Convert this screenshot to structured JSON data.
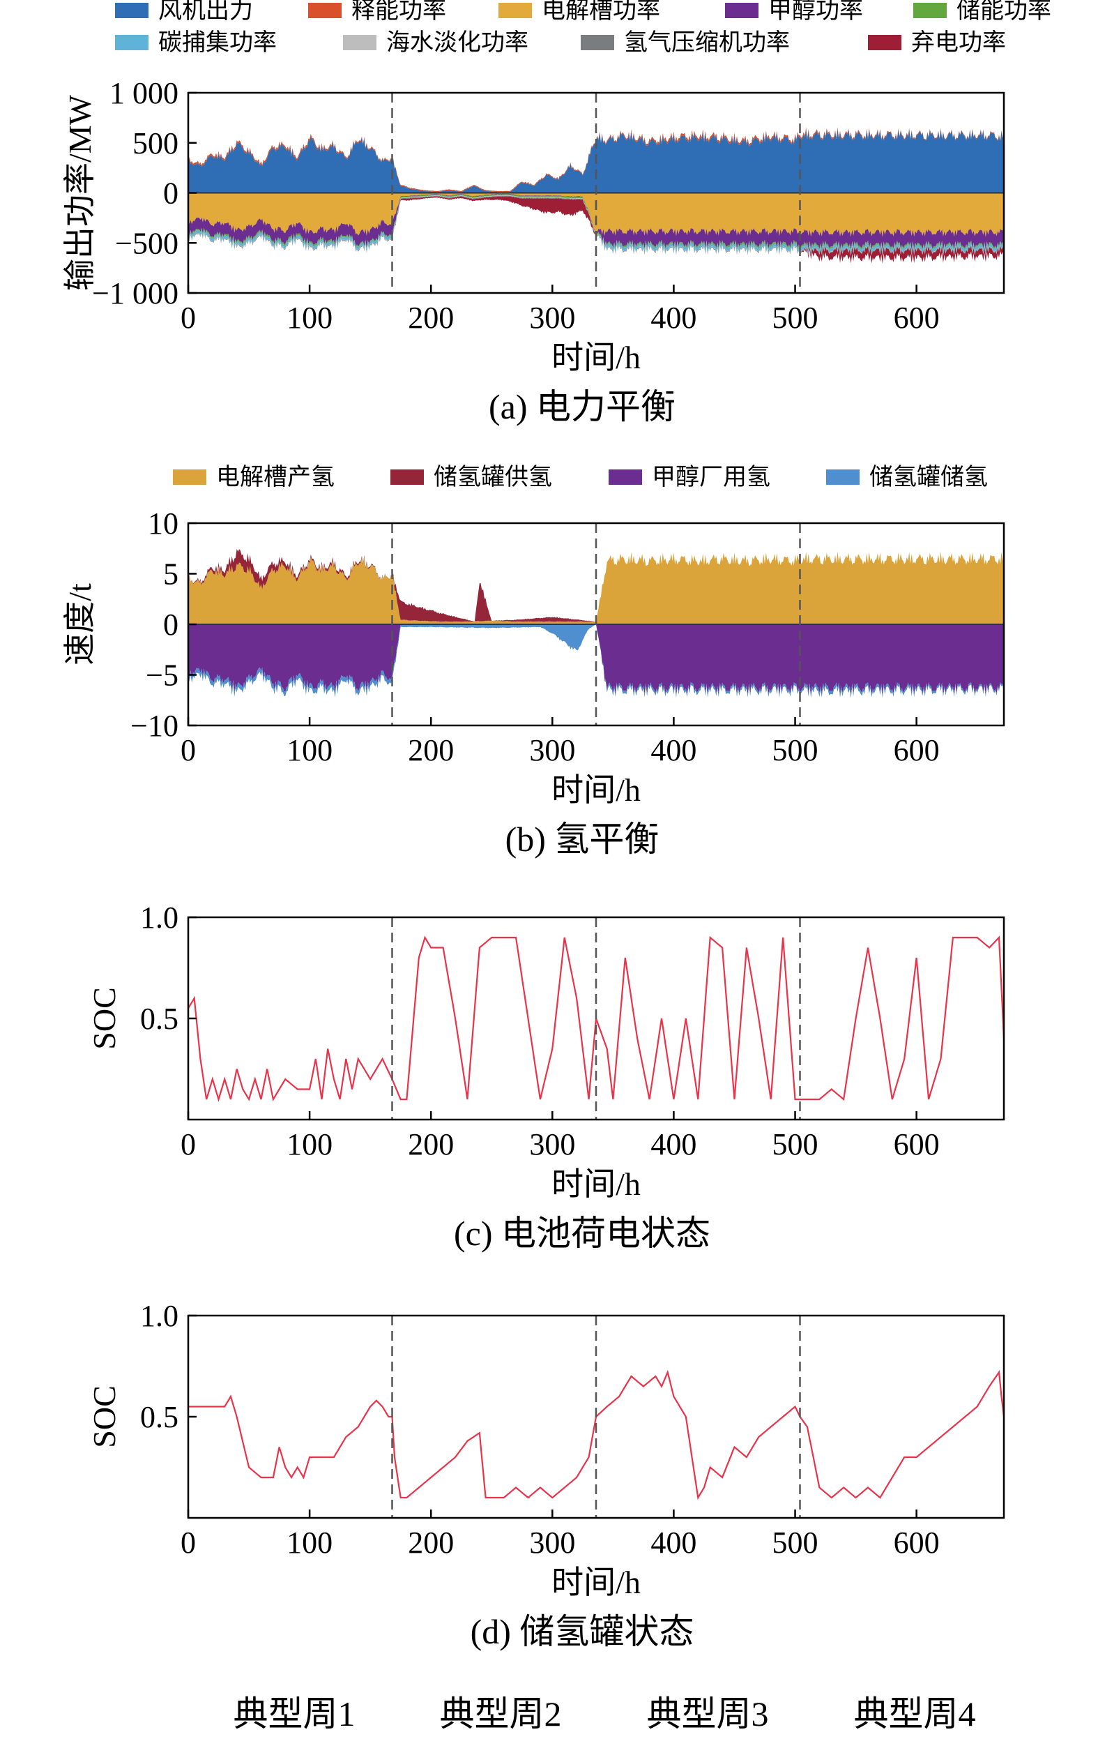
{
  "chart_data": [
    {
      "id": "a",
      "type": "area",
      "title": "",
      "caption": "(a) 电力平衡",
      "xlabel": "时间/h",
      "ylabel": "输出功率/MW",
      "xlim": [
        0,
        672
      ],
      "ylim": [
        -1000,
        1000
      ],
      "xticks": [
        0,
        100,
        200,
        300,
        400,
        500,
        600
      ],
      "yticks": [
        -1000,
        -500,
        0,
        500,
        1000
      ],
      "ytick_labels": [
        "−1 000",
        "−500",
        "0",
        "500",
        "1 000"
      ],
      "week_boundaries": [
        168,
        336,
        504
      ],
      "legend": {
        "position": "top",
        "columns": 5
      },
      "series": [
        {
          "name": "风机出力",
          "color": "#2f6db5",
          "sign": 1,
          "x": [
            0,
            10,
            20,
            30,
            40,
            50,
            60,
            70,
            80,
            90,
            100,
            110,
            120,
            130,
            140,
            150,
            160,
            168,
            175,
            185,
            195,
            205,
            215,
            225,
            235,
            245,
            255,
            265,
            275,
            285,
            295,
            305,
            315,
            325,
            336,
            345,
            360,
            380,
            400,
            420,
            440,
            460,
            480,
            500,
            504,
            520,
            540,
            560,
            580,
            600,
            620,
            640,
            660,
            672
          ],
          "values": [
            350,
            300,
            420,
            380,
            550,
            450,
            300,
            500,
            520,
            380,
            600,
            480,
            520,
            380,
            600,
            500,
            350,
            380,
            80,
            40,
            20,
            10,
            30,
            10,
            80,
            20,
            10,
            10,
            120,
            80,
            200,
            150,
            300,
            200,
            620,
            580,
            640,
            560,
            600,
            620,
            600,
            560,
            620,
            580,
            640,
            640,
            640,
            640,
            640,
            640,
            640,
            640,
            640,
            620
          ]
        },
        {
          "name": "释能功率",
          "color": "#d9512c",
          "sign": 1,
          "x": [
            0,
            100,
            168,
            336,
            400,
            504,
            600,
            672
          ],
          "values": [
            20,
            20,
            10,
            10,
            25,
            20,
            10,
            10
          ]
        },
        {
          "name": "电解槽功率",
          "color": "#e2a93b",
          "sign": -1,
          "x": [
            0,
            10,
            20,
            30,
            40,
            50,
            60,
            70,
            80,
            90,
            100,
            110,
            120,
            130,
            140,
            150,
            160,
            168,
            175,
            185,
            195,
            205,
            215,
            225,
            235,
            245,
            255,
            265,
            275,
            285,
            295,
            305,
            315,
            325,
            336,
            345,
            360,
            380,
            400,
            420,
            440,
            460,
            480,
            500,
            504,
            520,
            540,
            560,
            580,
            600,
            620,
            640,
            660,
            672
          ],
          "values": [
            330,
            280,
            350,
            330,
            420,
            380,
            300,
            400,
            420,
            330,
            450,
            400,
            420,
            330,
            450,
            420,
            330,
            350,
            40,
            30,
            20,
            10,
            30,
            10,
            40,
            20,
            10,
            10,
            30,
            30,
            30,
            30,
            40,
            40,
            430,
            430,
            430,
            430,
            430,
            430,
            430,
            430,
            430,
            430,
            440,
            440,
            440,
            440,
            440,
            440,
            440,
            440,
            440,
            440
          ]
        },
        {
          "name": "甲醇功率",
          "color": "#6b2d8f",
          "sign": -1,
          "x": [
            0,
            50,
            100,
            150,
            168,
            175,
            336,
            345,
            400,
            504,
            600,
            672
          ],
          "values": [
            120,
            130,
            120,
            130,
            120,
            5,
            5,
            140,
            140,
            140,
            140,
            140
          ]
        },
        {
          "name": "储能功率",
          "color": "#62a83f",
          "sign": -1,
          "x": [
            0,
            100,
            168,
            336,
            504,
            672
          ],
          "values": [
            15,
            20,
            10,
            15,
            20,
            15
          ]
        },
        {
          "name": "碳捕集功率",
          "color": "#5fb3d9",
          "sign": -1,
          "x": [
            0,
            168,
            175,
            336,
            345,
            672
          ],
          "values": [
            30,
            30,
            2,
            2,
            35,
            35
          ]
        },
        {
          "name": "海水淡化功率",
          "color": "#bdbdbd",
          "sign": -1,
          "x": [
            0,
            672
          ],
          "values": [
            5,
            5
          ]
        },
        {
          "name": "氢气压缩机功率",
          "color": "#7a7d80",
          "sign": -1,
          "x": [
            0,
            672
          ],
          "values": [
            8,
            8
          ]
        },
        {
          "name": "弃电功率",
          "color": "#9e1f35",
          "sign": -1,
          "x": [
            0,
            168,
            180,
            200,
            220,
            240,
            260,
            275,
            285,
            295,
            305,
            315,
            325,
            336,
            400,
            504,
            520,
            560,
            600,
            672
          ],
          "values": [
            0,
            0,
            20,
            10,
            15,
            20,
            40,
            80,
            120,
            160,
            150,
            180,
            120,
            0,
            0,
            0,
            70,
            80,
            80,
            60
          ]
        }
      ]
    },
    {
      "id": "b",
      "type": "area",
      "title": "",
      "caption": "(b) 氢平衡",
      "xlabel": "时间/h",
      "ylabel": "速度/t",
      "xlim": [
        0,
        672
      ],
      "ylim": [
        -10,
        10
      ],
      "xticks": [
        0,
        100,
        200,
        300,
        400,
        500,
        600
      ],
      "yticks": [
        -10,
        -5,
        0,
        5,
        10
      ],
      "ytick_labels": [
        "−10",
        "−5",
        "0",
        "5",
        "10"
      ],
      "week_boundaries": [
        168,
        336,
        504
      ],
      "legend": {
        "position": "top",
        "columns": 4
      },
      "series": [
        {
          "name": "电解槽产氢",
          "color": "#dba43a",
          "sign": 1,
          "x": [
            0,
            10,
            20,
            30,
            40,
            50,
            60,
            70,
            80,
            90,
            100,
            110,
            120,
            130,
            140,
            150,
            160,
            168,
            175,
            190,
            210,
            230,
            250,
            270,
            290,
            310,
            330,
            336,
            345,
            360,
            380,
            400,
            420,
            440,
            460,
            480,
            500,
            504,
            520,
            540,
            560,
            580,
            600,
            620,
            640,
            660,
            672
          ],
          "values": [
            5,
            4.5,
            6,
            5.5,
            6.5,
            6,
            4,
            6,
            6.5,
            5,
            7,
            6,
            6.5,
            5,
            7,
            6.5,
            5,
            5.5,
            0.5,
            0.4,
            0.3,
            0.3,
            0.4,
            0.3,
            0.3,
            0.3,
            0.3,
            0.3,
            7,
            7.2,
            7,
            7.2,
            7,
            7.2,
            7,
            7.2,
            7,
            7.2,
            7.2,
            7.2,
            7.2,
            7.2,
            7.2,
            7.2,
            7.2,
            7.2,
            7.2
          ]
        },
        {
          "name": "储氢罐供氢",
          "color": "#952538",
          "sign": 1,
          "x": [
            0,
            30,
            40,
            60,
            80,
            100,
            120,
            168,
            175,
            236,
            240,
            250,
            300,
            336,
            504,
            672
          ],
          "values": [
            0,
            0.5,
            1.5,
            1,
            0.5,
            0.2,
            0.3,
            0,
            2,
            0,
            4.5,
            0,
            0.5,
            0,
            0,
            0
          ]
        },
        {
          "name": "甲醇厂用氢",
          "color": "#6b2d8f",
          "sign": -1,
          "x": [
            0,
            10,
            20,
            30,
            40,
            50,
            60,
            70,
            80,
            90,
            100,
            110,
            120,
            130,
            140,
            150,
            160,
            168,
            175,
            336,
            345,
            400,
            504,
            672
          ],
          "values": [
            5.5,
            5,
            6,
            6,
            7,
            6,
            5,
            6.5,
            7,
            5.5,
            7,
            6.5,
            7,
            5.5,
            7,
            6.5,
            5.5,
            6,
            0,
            0,
            7,
            7,
            7,
            7
          ]
        },
        {
          "name": "储氢罐储氢",
          "color": "#4f8fcf",
          "sign": -1,
          "x": [
            0,
            100,
            168,
            175,
            200,
            250,
            290,
            300,
            310,
            320,
            330,
            336,
            345,
            504,
            520,
            672
          ],
          "values": [
            0.5,
            0.5,
            0.5,
            0.3,
            0.3,
            0.4,
            0.3,
            1,
            2,
            3,
            0.5,
            0,
            0.3,
            0.3,
            0.4,
            0.2
          ]
        }
      ]
    },
    {
      "id": "c",
      "type": "line",
      "title": "",
      "caption": "(c) 电池荷电状态",
      "xlabel": "时间/h",
      "ylabel": "SOC",
      "xlim": [
        0,
        672
      ],
      "ylim": [
        0,
        1.0
      ],
      "xticks": [
        0,
        100,
        200,
        300,
        400,
        500,
        600
      ],
      "yticks": [
        0.5,
        1.0
      ],
      "ytick_labels": [
        "0.5",
        "1.0"
      ],
      "week_boundaries": [
        168,
        336,
        504
      ],
      "series": [
        {
          "name": "",
          "color": "#e8334a",
          "x": [
            0,
            5,
            10,
            15,
            20,
            25,
            30,
            35,
            40,
            45,
            50,
            55,
            60,
            65,
            70,
            75,
            80,
            90,
            100,
            105,
            110,
            115,
            120,
            125,
            130,
            135,
            140,
            150,
            160,
            168,
            175,
            180,
            190,
            195,
            200,
            210,
            220,
            230,
            240,
            250,
            260,
            270,
            280,
            290,
            300,
            310,
            320,
            330,
            336,
            345,
            350,
            360,
            370,
            380,
            390,
            400,
            410,
            420,
            430,
            440,
            450,
            460,
            470,
            480,
            490,
            500,
            504,
            510,
            520,
            530,
            540,
            550,
            560,
            570,
            580,
            590,
            600,
            610,
            620,
            630,
            640,
            650,
            660,
            668,
            672
          ],
          "values": [
            0.55,
            0.6,
            0.3,
            0.1,
            0.2,
            0.1,
            0.2,
            0.1,
            0.25,
            0.15,
            0.1,
            0.2,
            0.1,
            0.25,
            0.1,
            0.15,
            0.2,
            0.15,
            0.15,
            0.3,
            0.1,
            0.35,
            0.2,
            0.1,
            0.3,
            0.15,
            0.3,
            0.2,
            0.3,
            0.2,
            0.1,
            0.1,
            0.8,
            0.9,
            0.85,
            0.85,
            0.5,
            0.1,
            0.85,
            0.9,
            0.9,
            0.9,
            0.5,
            0.1,
            0.35,
            0.9,
            0.6,
            0.1,
            0.5,
            0.35,
            0.1,
            0.8,
            0.4,
            0.1,
            0.5,
            0.1,
            0.5,
            0.1,
            0.9,
            0.85,
            0.1,
            0.85,
            0.5,
            0.1,
            0.9,
            0.1,
            0.1,
            0.1,
            0.1,
            0.15,
            0.1,
            0.5,
            0.85,
            0.5,
            0.1,
            0.3,
            0.8,
            0.1,
            0.3,
            0.9,
            0.9,
            0.9,
            0.85,
            0.9,
            0.4
          ]
        }
      ]
    },
    {
      "id": "d",
      "type": "line",
      "title": "",
      "caption": "(d) 储氢罐状态",
      "xlabel": "时间/h",
      "ylabel": "SOC",
      "xlim": [
        0,
        672
      ],
      "ylim": [
        0,
        1.0
      ],
      "xticks": [
        0,
        100,
        200,
        300,
        400,
        500,
        600
      ],
      "yticks": [
        0.5,
        1.0
      ],
      "ytick_labels": [
        "0.5",
        "1.0"
      ],
      "week_boundaries": [
        168,
        336,
        504
      ],
      "series": [
        {
          "name": "",
          "color": "#e8334a",
          "x": [
            0,
            10,
            20,
            30,
            35,
            40,
            50,
            60,
            70,
            75,
            80,
            85,
            90,
            95,
            100,
            105,
            110,
            120,
            130,
            140,
            150,
            155,
            160,
            165,
            168,
            170,
            175,
            180,
            190,
            200,
            210,
            220,
            230,
            235,
            240,
            245,
            250,
            260,
            270,
            280,
            290,
            300,
            310,
            320,
            330,
            336,
            345,
            355,
            365,
            375,
            385,
            390,
            395,
            400,
            405,
            410,
            420,
            425,
            430,
            440,
            450,
            460,
            470,
            480,
            490,
            500,
            504,
            510,
            520,
            530,
            540,
            550,
            560,
            570,
            580,
            590,
            600,
            610,
            620,
            630,
            640,
            650,
            660,
            668,
            670,
            672
          ],
          "values": [
            0.55,
            0.55,
            0.55,
            0.55,
            0.6,
            0.5,
            0.25,
            0.2,
            0.2,
            0.35,
            0.25,
            0.2,
            0.25,
            0.2,
            0.3,
            0.3,
            0.3,
            0.3,
            0.4,
            0.45,
            0.55,
            0.58,
            0.55,
            0.5,
            0.5,
            0.3,
            0.1,
            0.1,
            0.15,
            0.2,
            0.25,
            0.3,
            0.38,
            0.4,
            0.42,
            0.1,
            0.1,
            0.1,
            0.15,
            0.1,
            0.15,
            0.1,
            0.15,
            0.2,
            0.3,
            0.5,
            0.55,
            0.6,
            0.7,
            0.65,
            0.7,
            0.65,
            0.72,
            0.6,
            0.55,
            0.5,
            0.1,
            0.15,
            0.25,
            0.2,
            0.35,
            0.3,
            0.4,
            0.45,
            0.5,
            0.55,
            0.5,
            0.45,
            0.15,
            0.1,
            0.15,
            0.1,
            0.15,
            0.1,
            0.2,
            0.3,
            0.3,
            0.35,
            0.4,
            0.45,
            0.5,
            0.55,
            0.65,
            0.72,
            0.6,
            0.5
          ]
        }
      ]
    }
  ],
  "week_labels": [
    "典型周1",
    "典型周2",
    "典型周3",
    "典型周4"
  ]
}
